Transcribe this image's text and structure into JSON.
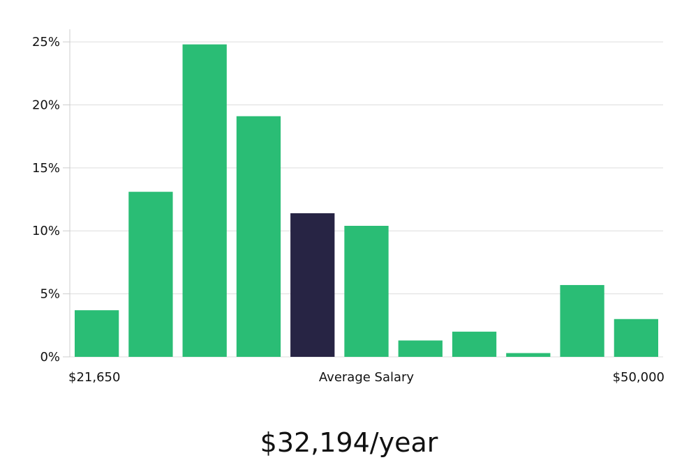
{
  "chart_data": {
    "type": "bar",
    "title": "",
    "xlabel": "",
    "ylabel": "",
    "ylim": [
      0,
      26
    ],
    "y_ticks": [
      {
        "value": 0,
        "label": "0%"
      },
      {
        "value": 5,
        "label": "5%"
      },
      {
        "value": 10,
        "label": "10%"
      },
      {
        "value": 15,
        "label": "15%"
      },
      {
        "value": 20,
        "label": "20%"
      },
      {
        "value": 25,
        "label": "25%"
      }
    ],
    "grid": true,
    "values": [
      3.7,
      13.1,
      24.8,
      19.1,
      11.4,
      10.4,
      1.3,
      2.0,
      0.3,
      5.7,
      3.0
    ],
    "highlight_index": 4,
    "colors": {
      "bar": "#2abd75",
      "highlight": "#272444",
      "grid": "#dddddd",
      "axis": "#cccccc"
    },
    "x_axis_labels": {
      "left": "$21,650",
      "center": "Average Salary",
      "right": "$50,000"
    }
  },
  "average_salary": "$32,194/year"
}
